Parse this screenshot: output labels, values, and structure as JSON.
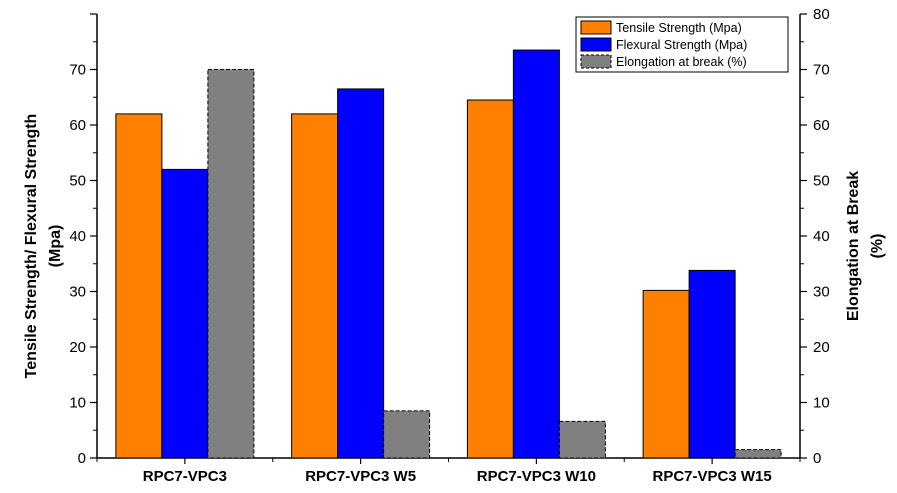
{
  "chart_data": {
    "type": "bar",
    "categories": [
      "RPC7-VPC3",
      "RPC7-VPC3 W5",
      "RPC7-VPC3 W10",
      "RPC7-VPC3 W15"
    ],
    "series": [
      {
        "name": "Tensile Strength (Mpa)",
        "axis": "left",
        "color": "#ff8000",
        "values": [
          62,
          62,
          64.5,
          30.2
        ]
      },
      {
        "name": "Flexural Strength (Mpa)",
        "axis": "left",
        "color": "#0000ff",
        "values": [
          52,
          66.5,
          73.5,
          33.8
        ]
      },
      {
        "name": "Elongation at break (%)",
        "axis": "right",
        "color": "#808080",
        "values": [
          70,
          8.5,
          6.6,
          1.5
        ]
      }
    ],
    "ylabel_left": [
      "Tensile Strength/ Flexural Strength",
      "(Mpa)"
    ],
    "ylabel_right": [
      "Elongation at Break",
      "(%)"
    ],
    "ylim_left": [
      0,
      80
    ],
    "ylim_right": [
      0,
      80
    ],
    "yticks_left": [
      "0",
      "10",
      "20",
      "30",
      "40",
      "50",
      "60",
      "70"
    ],
    "yticks_right": [
      "0",
      "10",
      "20",
      "30",
      "40",
      "50",
      "60",
      "70",
      "80"
    ],
    "legend_position": "top-right",
    "grid": false
  }
}
